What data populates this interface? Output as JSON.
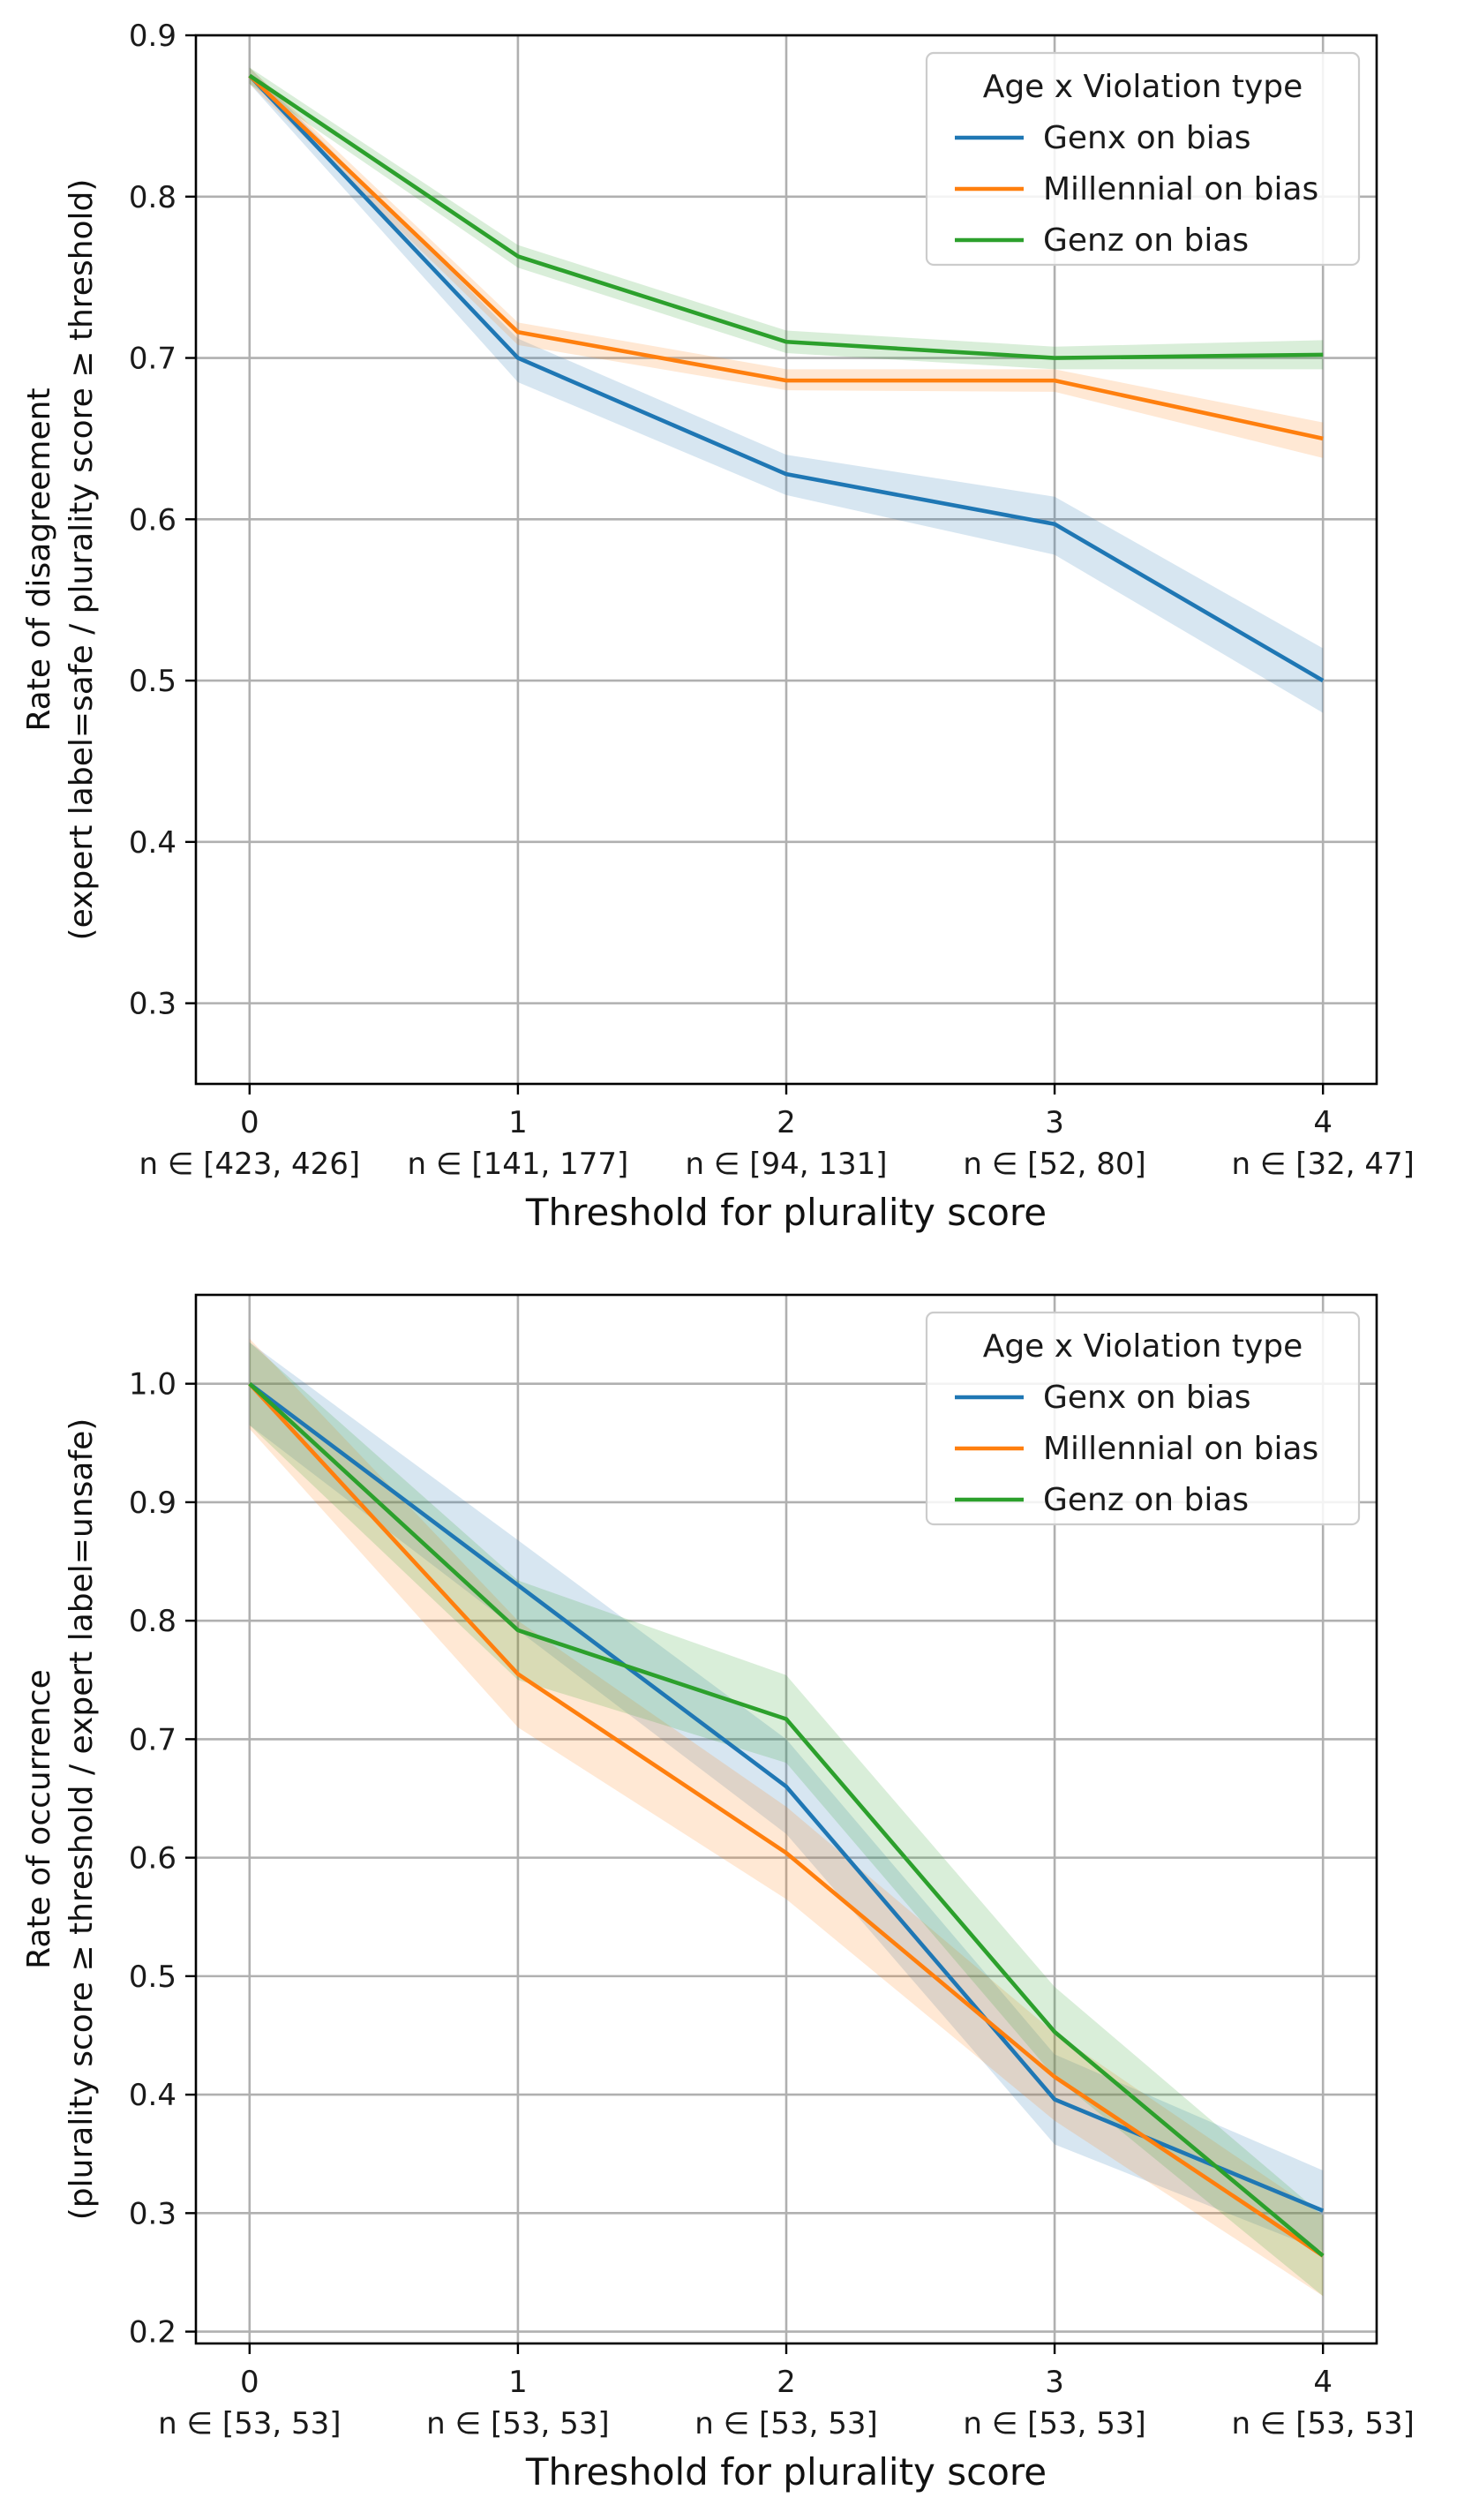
{
  "chart_data": [
    {
      "type": "line",
      "x": [
        0,
        1,
        2,
        3,
        4
      ],
      "xlabel": "Threshold for plurality score",
      "x_tick_labels": [
        "0",
        "1",
        "2",
        "3",
        "4"
      ],
      "x_n_labels": [
        "n ∈ [423, 426]",
        "n ∈ [141, 177]",
        "n ∈ [94, 131]",
        "n ∈ [52, 80]",
        "n ∈ [32, 47]"
      ],
      "ylabel_lines": [
        "Rate of disagreement",
        "(expert label=safe / plurality score ≥ threshold)"
      ],
      "ylim": [
        0.25,
        0.9
      ],
      "y_ticks": [
        0.3,
        0.4,
        0.5,
        0.6,
        0.7,
        0.8,
        0.9
      ],
      "y_tick_labels": [
        "0.3",
        "0.4",
        "0.5",
        "0.6",
        "0.7",
        "0.8",
        "0.9"
      ],
      "grid": true,
      "legend": {
        "title": "Age x Violation type",
        "placement": "upper-right"
      },
      "series": [
        {
          "name": "Genx on bias",
          "color": "#1f77b4",
          "values": [
            0.875,
            0.7,
            0.628,
            0.597,
            0.5
          ],
          "lower": [
            0.87,
            0.685,
            0.615,
            0.578,
            0.48
          ],
          "upper": [
            0.88,
            0.712,
            0.64,
            0.614,
            0.52
          ]
        },
        {
          "name": "Millennial on bias",
          "color": "#ff7f0e",
          "values": [
            0.875,
            0.716,
            0.686,
            0.686,
            0.65
          ],
          "lower": [
            0.87,
            0.708,
            0.68,
            0.679,
            0.638
          ],
          "upper": [
            0.88,
            0.722,
            0.693,
            0.693,
            0.66
          ]
        },
        {
          "name": "Genz on bias",
          "color": "#2ca02c",
          "values": [
            0.875,
            0.763,
            0.71,
            0.7,
            0.702
          ],
          "lower": [
            0.87,
            0.756,
            0.703,
            0.693,
            0.693
          ],
          "upper": [
            0.88,
            0.77,
            0.717,
            0.707,
            0.711
          ]
        }
      ]
    },
    {
      "type": "line",
      "x": [
        0,
        1,
        2,
        3,
        4
      ],
      "xlabel": "Threshold for plurality score",
      "x_tick_labels": [
        "0",
        "1",
        "2",
        "3",
        "4"
      ],
      "x_n_labels": [
        "n ∈ [53, 53]",
        "n ∈ [53, 53]",
        "n ∈ [53, 53]",
        "n ∈ [53, 53]",
        "n ∈ [53, 53]"
      ],
      "ylabel_lines": [
        "Rate of occurrence",
        "(plurality score ≥ threshold / expert label=unsafe)"
      ],
      "ylim": [
        0.19,
        1.075
      ],
      "y_ticks": [
        0.2,
        0.3,
        0.4,
        0.5,
        0.6,
        0.7,
        0.8,
        0.9,
        1.0
      ],
      "y_tick_labels": [
        "0.2",
        "0.3",
        "0.4",
        "0.5",
        "0.6",
        "0.7",
        "0.8",
        "0.9",
        "1.0"
      ],
      "grid": true,
      "legend": {
        "title": "Age x Violation type",
        "placement": "upper-right"
      },
      "series": [
        {
          "name": "Genx on bias",
          "color": "#1f77b4",
          "values": [
            1.0,
            0.83,
            0.66,
            0.396,
            0.302
          ],
          "lower": [
            0.965,
            0.792,
            0.62,
            0.358,
            0.268
          ],
          "upper": [
            1.035,
            0.868,
            0.7,
            0.434,
            0.336
          ]
        },
        {
          "name": "Millennial on bias",
          "color": "#ff7f0e",
          "values": [
            1.0,
            0.755,
            0.604,
            0.415,
            0.264
          ],
          "lower": [
            0.962,
            0.71,
            0.565,
            0.378,
            0.23
          ],
          "upper": [
            1.038,
            0.8,
            0.643,
            0.452,
            0.298
          ]
        },
        {
          "name": "Genz on bias",
          "color": "#2ca02c",
          "values": [
            1.0,
            0.792,
            0.717,
            0.453,
            0.264
          ],
          "lower": [
            0.965,
            0.75,
            0.68,
            0.415,
            0.23
          ],
          "upper": [
            1.035,
            0.834,
            0.754,
            0.491,
            0.298
          ]
        }
      ]
    }
  ]
}
